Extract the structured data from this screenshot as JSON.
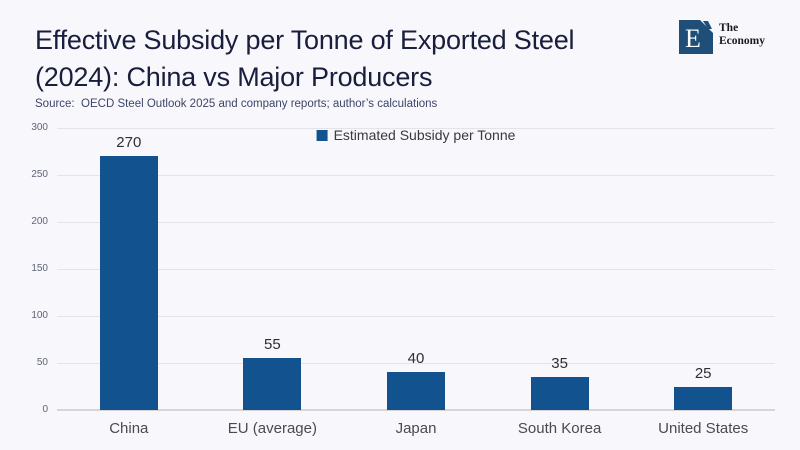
{
  "header": {
    "title_line1": "Effective Subsidy per Tonne of Exported Steel",
    "title_line2": "(2024): China vs Major Producers",
    "source": "Source:  OECD Steel Outlook 2025 and company reports; author’s calculations"
  },
  "logo": {
    "letter": "E",
    "text_line1": "The",
    "text_line2": "Economy"
  },
  "legend": {
    "label": "Estimated Subsidy per Tonne"
  },
  "chart_data": {
    "type": "bar",
    "title": "Effective Subsidy per Tonne of Exported Steel (2024): China vs Major Producers",
    "categories": [
      "China",
      "EU (average)",
      "Japan",
      "South Korea",
      "United States"
    ],
    "values": [
      270,
      55,
      40,
      35,
      25
    ],
    "series_name": "Estimated Subsidy per Tonne",
    "xlabel": "",
    "ylabel": "",
    "ylim": [
      0,
      300
    ],
    "yticks": [
      0,
      50,
      100,
      150,
      200,
      250,
      300
    ],
    "grid": true,
    "legend_position": "top-center",
    "value_labels_shown": true
  },
  "colors": {
    "bar": "#11528F",
    "logo_navy": "#1F4E79",
    "background": "#F7F7FC",
    "title_text": "#191E3C",
    "source_text": "#3E4668",
    "gridline": "#E3E3EA",
    "axis_line": "#D5D5DC",
    "value_label": "#303030",
    "ytick_label": "#5F6575",
    "category_label": "#4B4B4B",
    "legend_text": "#3A3A3A"
  }
}
